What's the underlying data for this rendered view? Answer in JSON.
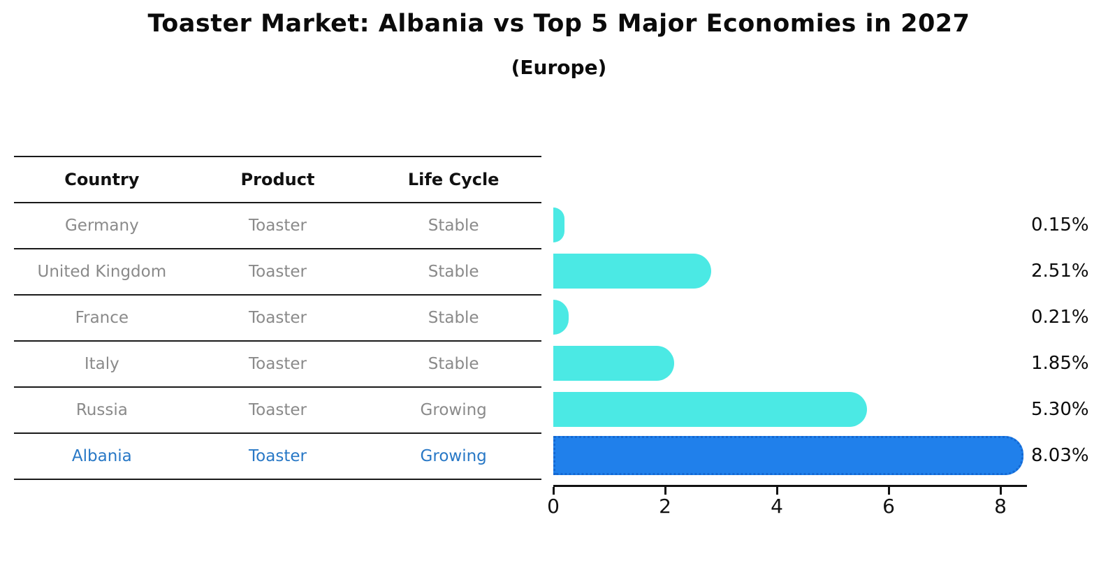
{
  "title": "Toaster Market: Albania vs Top 5 Major Economies in 2027",
  "subtitle": "(Europe)",
  "table": {
    "headers": [
      "Country",
      "Product",
      "Life Cycle"
    ],
    "rows": [
      {
        "country": "Germany",
        "product": "Toaster",
        "life_cycle": "Stable",
        "highlighted": false
      },
      {
        "country": "United Kingdom",
        "product": "Toaster",
        "life_cycle": "Stable",
        "highlighted": false
      },
      {
        "country": "France",
        "product": "Toaster",
        "life_cycle": "Stable",
        "highlighted": false
      },
      {
        "country": "Italy",
        "product": "Toaster",
        "life_cycle": "Stable",
        "highlighted": false
      },
      {
        "country": "Russia",
        "product": "Toaster",
        "life_cycle": "Growing",
        "highlighted": false
      },
      {
        "country": "Albania",
        "product": "Toaster",
        "life_cycle": "Growing",
        "highlighted": true
      }
    ]
  },
  "chart_data": {
    "type": "bar",
    "orientation": "horizontal",
    "title": "Toaster Market: Albania vs Top 5 Major Economies in 2027",
    "subtitle": "(Europe)",
    "categories": [
      "Germany",
      "United Kingdom",
      "France",
      "Italy",
      "Russia",
      "Albania"
    ],
    "values": [
      0.15,
      2.51,
      0.21,
      1.85,
      5.3,
      8.03
    ],
    "value_labels": [
      "0.15%",
      "2.51%",
      "0.21%",
      "1.85%",
      "5.30%",
      "8.03%"
    ],
    "xticks": [
      "0",
      "2",
      "4",
      "6",
      "8"
    ],
    "xtick_values": [
      0,
      2,
      4,
      6,
      8
    ],
    "xlim": [
      0,
      8.48
    ],
    "grid": false,
    "legend": false,
    "bar_color": "#4BE9E4",
    "highlight_color": "#2080EB",
    "highlight_border_color": "#1468D2",
    "highlight_text_color": "#2878C6",
    "highlight_index": 5
  }
}
